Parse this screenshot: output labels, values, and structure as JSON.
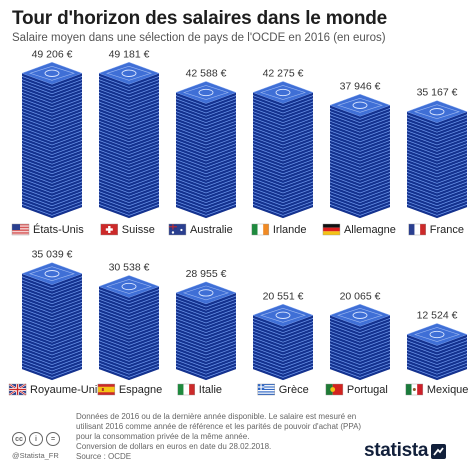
{
  "header": {
    "title": "Tour d'horizon des salaires dans le monde",
    "subtitle": "Salaire moyen dans une sélection de pays de l'OCDE en 2016 (en euros)"
  },
  "chart_data": {
    "type": "bar",
    "title": "Tour d'horizon des salaires dans le monde",
    "subtitle": "Salaire moyen dans une sélection de pays de l'OCDE en 2016 (en euros)",
    "unit": "€",
    "categories": [
      "États-Unis",
      "Suisse",
      "Australie",
      "Irlande",
      "Allemagne",
      "France",
      "Royaume-Uni",
      "Espagne",
      "Italie",
      "Grèce",
      "Portugal",
      "Mexique"
    ],
    "values": [
      49206,
      49181,
      42588,
      42275,
      37946,
      35167,
      35039,
      30538,
      28955,
      20551,
      20065,
      12524
    ],
    "value_labels": [
      "49 206 €",
      "49 181 €",
      "42 588 €",
      "42 275 €",
      "37 946 €",
      "35 167 €",
      "35 039 €",
      "30 538 €",
      "28 955 €",
      "20 551 €",
      "20 065 €",
      "12 524 €"
    ],
    "flags": [
      "flag-us",
      "flag-ch",
      "flag-au",
      "flag-ie",
      "flag-de",
      "flag-fr",
      "flag-gb",
      "flag-es",
      "flag-it",
      "flag-gr",
      "flag-pt",
      "flag-mx"
    ],
    "bar_style": "stacked banknotes",
    "colors": {
      "note_top": "#3f6fd6",
      "note_side": "#14328f",
      "note_edge": "#7ea2ee",
      "flag_red": "#cc2a2a",
      "flag_blue": "#2a3f8f",
      "flag_green": "#1f8a3e"
    }
  },
  "footer": {
    "note_lines": [
      "Données de 2016 ou de la dernière année disponible. Le salaire est mesuré en",
      "utilisant 2016 comme année de référence et les parités de pouvoir d'achat (PPA)",
      "pour la consommation privée de la même année.",
      "Conversion de dollars en euros en date du 28.02.2018.",
      "Source : OCDE"
    ],
    "handle": "@Statista_FR",
    "brand": "statista",
    "cc_labels": [
      "cc",
      "i",
      "="
    ]
  }
}
